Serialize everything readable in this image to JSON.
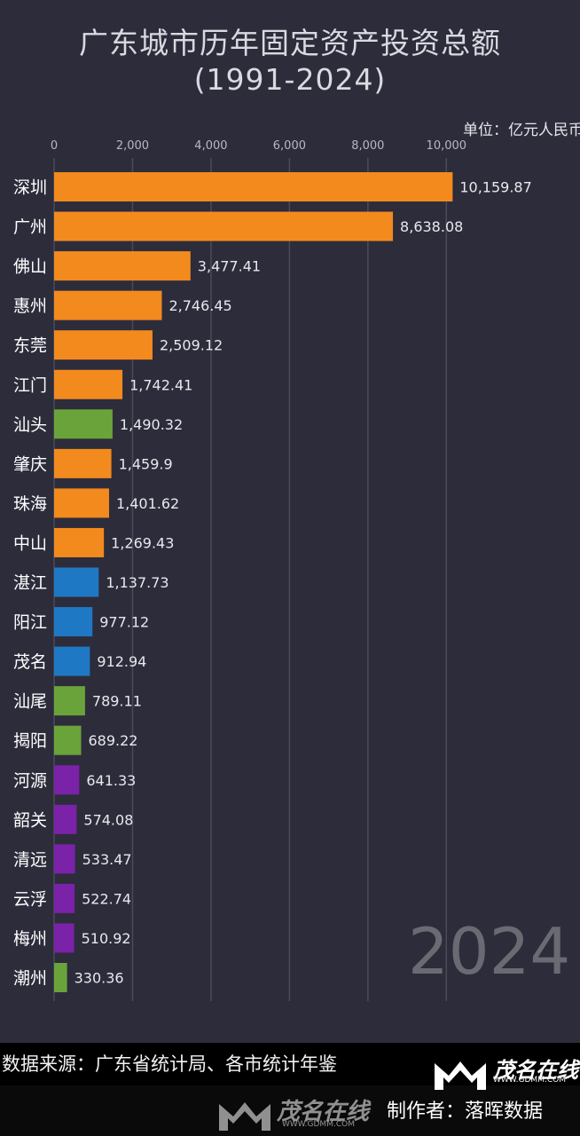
{
  "title_line1": "广东城市历年固定资产投资总额",
  "title_line2": "(1991-2024)",
  "unit": "单位：亿元人民币",
  "year": "2024",
  "source": "数据来源：广东省统计局、各市统计年鉴",
  "maker": "制作者：落晖数据",
  "watermark": {
    "brand": "茂名在线",
    "url": "WWW.GDMM.COM"
  },
  "colors": {
    "background": "#2d2c3b",
    "pearl_river_delta": "#f28a1e",
    "east": "#6aa33a",
    "west": "#1f78c4",
    "north": "#7a22a8",
    "grid": "#4a4a58"
  },
  "chart_data": {
    "type": "bar",
    "orientation": "horizontal",
    "title": "广东城市历年固定资产投资总额(1991-2024)",
    "unit": "亿元人民币",
    "xlim": [
      0,
      10000
    ],
    "xticks": [
      0,
      2000,
      4000,
      6000,
      8000,
      10000
    ],
    "xtick_labels": [
      "0",
      "2,000",
      "4,000",
      "6,000",
      "8,000",
      "10,000"
    ],
    "grid": true,
    "categories": [
      "深圳",
      "广州",
      "佛山",
      "惠州",
      "东莞",
      "江门",
      "汕头",
      "肇庆",
      "珠海",
      "中山",
      "湛江",
      "阳江",
      "茂名",
      "汕尾",
      "揭阳",
      "河源",
      "韶关",
      "清远",
      "云浮",
      "梅州",
      "潮州"
    ],
    "values": [
      10159.87,
      8638.08,
      3477.41,
      2746.45,
      2509.12,
      1742.41,
      1490.32,
      1459.9,
      1401.62,
      1269.43,
      1137.73,
      977.12,
      912.94,
      789.11,
      689.22,
      641.33,
      574.08,
      533.47,
      522.74,
      510.92,
      330.36
    ],
    "value_labels": [
      "10,159.87",
      "8,638.08",
      "3,477.41",
      "2,746.45",
      "2,509.12",
      "1,742.41",
      "1,490.32",
      "1,459.9",
      "1,401.62",
      "1,269.43",
      "1,137.73",
      "977.12",
      "912.94",
      "789.11",
      "689.22",
      "641.33",
      "574.08",
      "533.47",
      "522.74",
      "510.92",
      "330.36"
    ],
    "bar_colors": [
      "#f28a1e",
      "#f28a1e",
      "#f28a1e",
      "#f28a1e",
      "#f28a1e",
      "#f28a1e",
      "#6aa33a",
      "#f28a1e",
      "#f28a1e",
      "#f28a1e",
      "#1f78c4",
      "#1f78c4",
      "#1f78c4",
      "#6aa33a",
      "#6aa33a",
      "#7a22a8",
      "#7a22a8",
      "#7a22a8",
      "#7a22a8",
      "#7a22a8",
      "#6aa33a"
    ]
  }
}
